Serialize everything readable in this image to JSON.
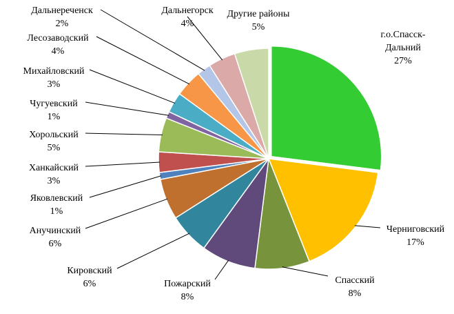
{
  "chart_data": {
    "type": "pie",
    "categories": [
      "г.о.Спасск-Дальний",
      "Черниговский",
      "Спасский",
      "Пожарский",
      "Кировский",
      "Анучинский",
      "Яковлевский",
      "Ханкайский",
      "Хорольский",
      "Чугуевский",
      "Михайловский",
      "Лесозаводский",
      "Дальнереченск",
      "Дальнегорск",
      "Другие районы"
    ],
    "values": [
      27,
      17,
      8,
      8,
      6,
      6,
      1,
      3,
      5,
      1,
      3,
      4,
      2,
      4,
      5
    ],
    "value_labels": [
      "27%",
      "17%",
      "8%",
      "8%",
      "6%",
      "6%",
      "1%",
      "3%",
      "5%",
      "1%",
      "3%",
      "4%",
      "2%",
      "4%",
      "5%"
    ],
    "colors": [
      "#33cc33",
      "#ffc000",
      "#77933c",
      "#604a7b",
      "#31859c",
      "#c0702e",
      "#4f81bd",
      "#c0504d",
      "#9bbb59",
      "#8064a2",
      "#4bacc6",
      "#f79646",
      "#b4c6e7",
      "#dba9a8",
      "#c9d9a8"
    ]
  }
}
